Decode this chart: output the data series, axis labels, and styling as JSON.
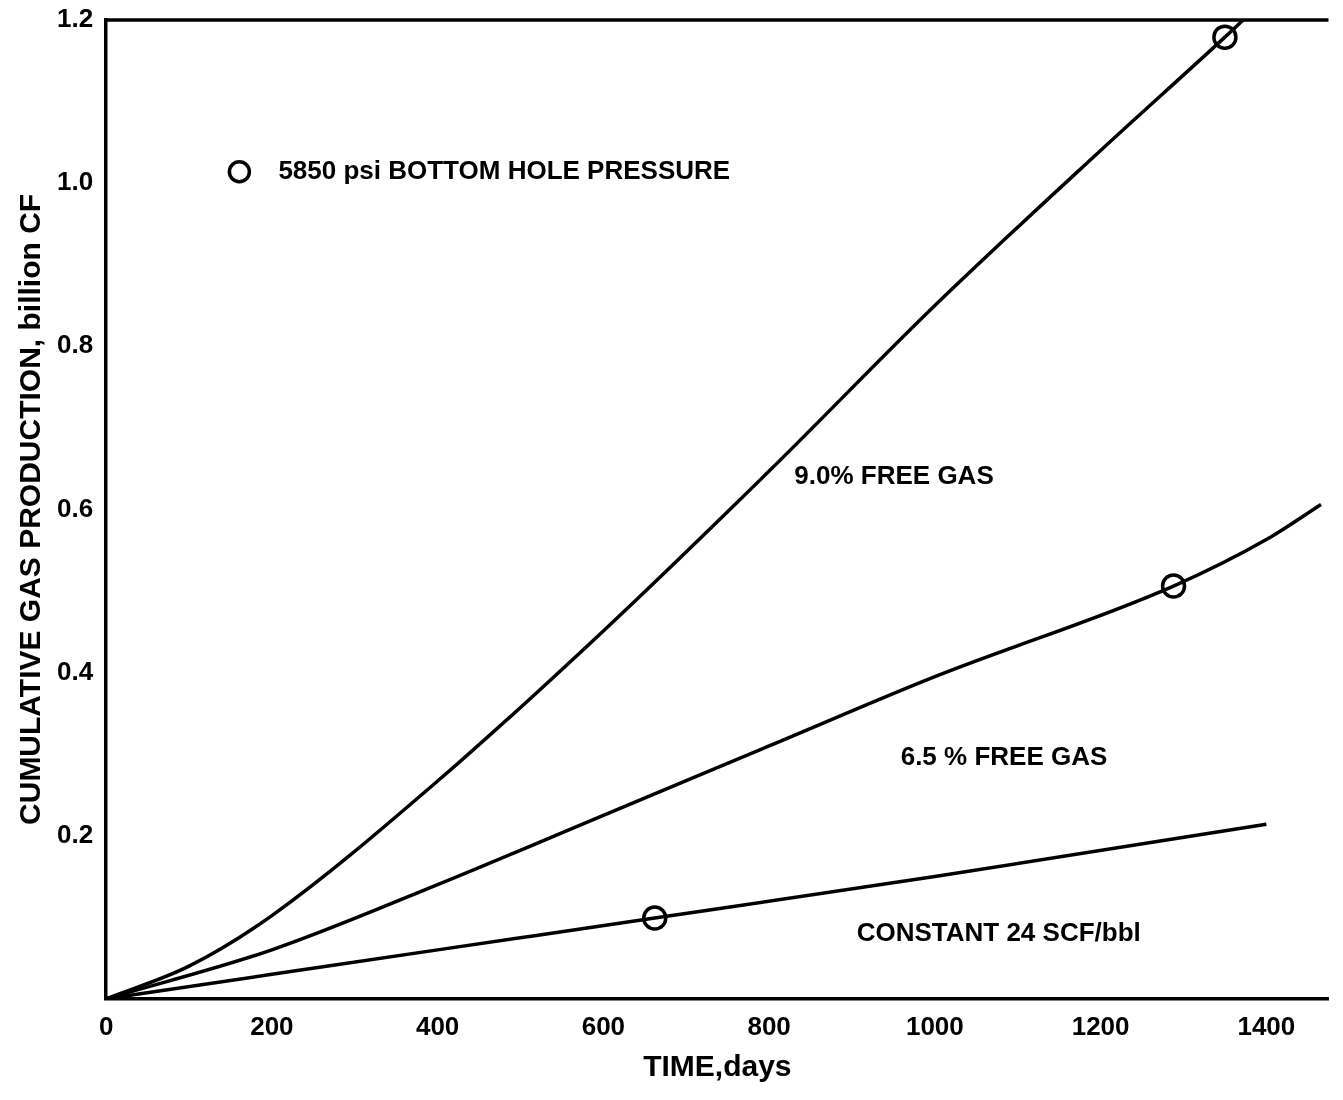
{
  "chart_data": {
    "type": "line",
    "xlabel": "TIME,days",
    "ylabel": "CUMULATIVE GAS PRODUCTION, billion CF",
    "xlim": [
      0,
      1475
    ],
    "ylim": [
      0,
      1.2
    ],
    "xticks": [
      0,
      200,
      400,
      600,
      800,
      1000,
      1200,
      1400
    ],
    "yticks": [
      {
        "value": 0.2,
        "label": "0.2"
      },
      {
        "value": 0.4,
        "label": "0.4"
      },
      {
        "value": 0.6,
        "label": "0.6"
      },
      {
        "value": 0.8,
        "label": "0.8"
      },
      {
        "value": 1.0,
        "label": "1.0"
      },
      {
        "value": 1.2,
        "label": "1.2"
      }
    ],
    "grid": false,
    "legend": "top left",
    "line_style": "solid",
    "series": [
      {
        "name": "9.0% FREE GAS",
        "color": "#000000",
        "marker": "none",
        "x": [
          0,
          100,
          200,
          400,
          600,
          800,
          1000,
          1200,
          1350,
          1372
        ],
        "values": [
          0,
          0.04,
          0.102,
          0.267,
          0.451,
          0.647,
          0.85,
          1.04,
          1.179,
          1.2
        ]
      },
      {
        "name": "6.5 % FREE GAS",
        "color": "#000000",
        "marker": "none",
        "x": [
          0,
          200,
          400,
          600,
          800,
          1000,
          1288,
          1400,
          1466
        ],
        "values": [
          0,
          0.06,
          0.14,
          0.225,
          0.31,
          0.395,
          0.506,
          0.563,
          0.606
        ]
      },
      {
        "name": "CONSTANT 24 SCF/bbl",
        "color": "#000000",
        "marker": "none",
        "x": [
          0,
          200,
          400,
          662,
          1000,
          1400
        ],
        "values": [
          0,
          0.03,
          0.06,
          0.099,
          0.15,
          0.214
        ]
      },
      {
        "name": "5850 psi BOTTOM HOLE PRESSURE",
        "type": "scatter",
        "color": "#000000",
        "marker": "circle",
        "x": [
          662,
          1288,
          1350
        ],
        "values": [
          0.099,
          0.506,
          1.179
        ]
      }
    ]
  }
}
